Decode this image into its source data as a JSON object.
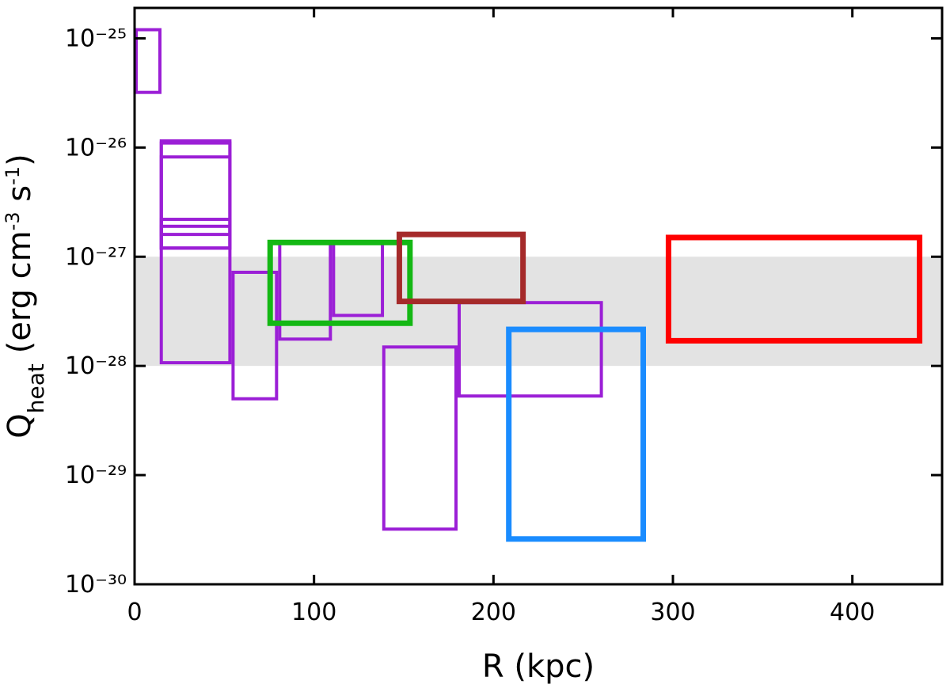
{
  "chart_data": {
    "type": "box-regions",
    "xlabel": "R (kpc)",
    "ylabel": [
      "Q",
      "heat",
      " (erg cm",
      "-3",
      " s",
      "-1",
      ")"
    ],
    "xlim": [
      0,
      450
    ],
    "xticks": [
      0,
      100,
      200,
      300,
      400
    ],
    "ylim": [
      1e-30,
      1.9e-25
    ],
    "log_y": true,
    "yticks": [
      {
        "value": 1e-30,
        "label": "10⁻³⁰"
      },
      {
        "value": 1e-29,
        "label": "10⁻²⁹"
      },
      {
        "value": 1e-28,
        "label": "10⁻²⁸"
      },
      {
        "value": 1e-27,
        "label": "10⁻²⁷"
      },
      {
        "value": 1e-26,
        "label": "10⁻²⁶"
      },
      {
        "value": 1e-25,
        "label": "10⁻²⁵"
      }
    ],
    "band": {
      "y": [
        1e-28,
        1e-27
      ],
      "color": "#e3e3e3"
    },
    "boxes": [
      {
        "color": "#9b1fd6",
        "width": 4,
        "x": [
          0,
          15
        ],
        "y": [
          3.2e-26,
          1.2e-25
        ]
      },
      {
        "color": "#9b1fd6",
        "width": 4,
        "x": [
          14,
          54
        ],
        "y": [
          1.07e-28,
          1.15e-26
        ]
      },
      {
        "color": "#9b1fd6",
        "width": 4,
        "x": [
          14,
          54
        ],
        "y": [
          1.2e-27,
          1.1e-26
        ]
      },
      {
        "color": "#9b1fd6",
        "width": 4,
        "x": [
          14,
          54
        ],
        "y": [
          1.6e-27,
          8.2e-27
        ]
      },
      {
        "color": "#9b1fd6",
        "width": 4,
        "x": [
          14,
          54
        ],
        "y": [
          1.2e-27,
          2.2e-27
        ]
      },
      {
        "color": "#9b1fd6",
        "width": 4,
        "x": [
          14,
          54
        ],
        "y": [
          1.2e-27,
          1.9e-27
        ]
      },
      {
        "color": "#9b1fd6",
        "width": 4,
        "x": [
          54,
          80
        ],
        "y": [
          5e-29,
          7.2e-28
        ]
      },
      {
        "color": "#9b1fd6",
        "width": 4,
        "x": [
          80,
          110
        ],
        "y": [
          1.76e-28,
          1.35e-27
        ]
      },
      {
        "color": "#9b1fd6",
        "width": 4,
        "x": [
          110,
          139
        ],
        "y": [
          2.9e-28,
          1.35e-27
        ]
      },
      {
        "color": "#9b1fd6",
        "width": 4,
        "x": [
          138,
          180
        ],
        "y": [
          3.2e-30,
          1.49e-28
        ]
      },
      {
        "color": "#9b1fd6",
        "width": 4,
        "x": [
          180,
          261
        ],
        "y": [
          5.3e-29,
          3.8e-28
        ]
      },
      {
        "color": "#14b814",
        "width": 7,
        "x": [
          74,
          155
        ],
        "y": [
          2.46e-28,
          1.35e-27
        ]
      },
      {
        "color": "#a52a2a",
        "width": 7,
        "x": [
          146,
          218
        ],
        "y": [
          3.9e-28,
          1.6e-27
        ]
      },
      {
        "color": "#1a8cff",
        "width": 7,
        "x": [
          207,
          285
        ],
        "y": [
          2.6e-30,
          2.16e-28
        ]
      },
      {
        "color": "#ff0000",
        "width": 7,
        "x": [
          296,
          439
        ],
        "y": [
          1.7e-28,
          1.5e-27
        ]
      }
    ]
  }
}
